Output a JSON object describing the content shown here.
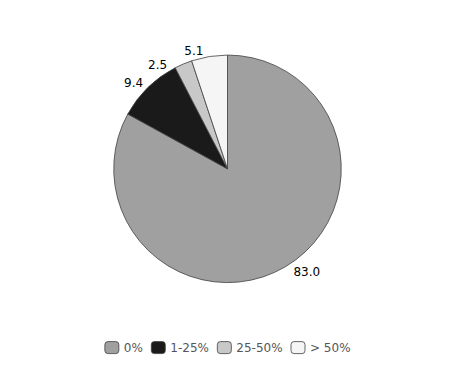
{
  "chart_data": {
    "type": "pie",
    "categories": [
      "0%",
      "1-25%",
      "25-50%",
      "> 50%"
    ],
    "values": [
      83.0,
      9.4,
      2.5,
      5.1
    ],
    "value_labels": [
      "83.0",
      "9.4",
      "2.5",
      "5.1"
    ],
    "colors": [
      "#a0a0a0",
      "#1a1a1a",
      "#c8c8c8",
      "#f5f5f5"
    ],
    "data_labels": true,
    "legend": "bottom"
  }
}
